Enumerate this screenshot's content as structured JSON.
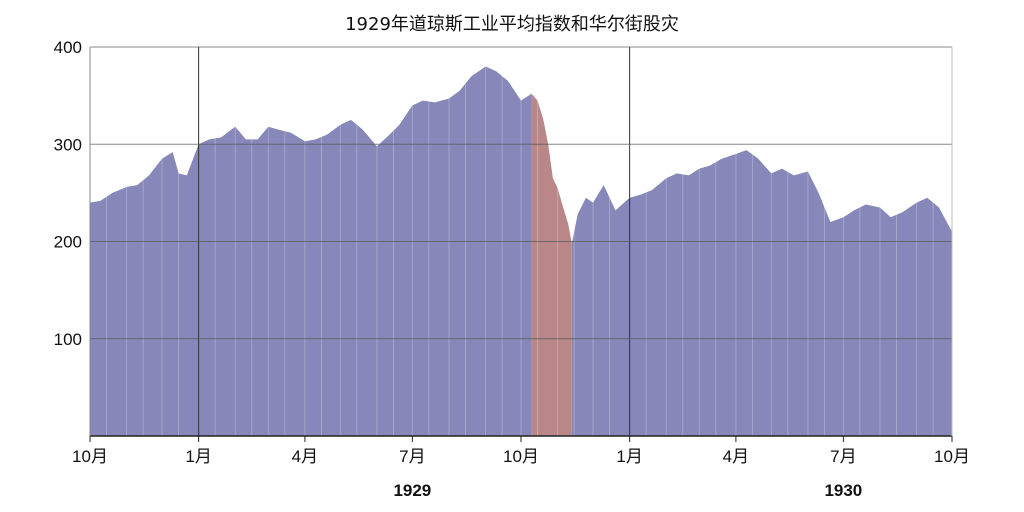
{
  "chart_data": {
    "type": "area",
    "title": "1929年道琼斯工业平均指数和华尔街股灾",
    "xlabel": "",
    "ylabel": "",
    "ylim": [
      0,
      400
    ],
    "y_ticks": [
      100,
      200,
      300,
      400
    ],
    "x_range": [
      "1928-10",
      "1930-10"
    ],
    "x_ticks": [
      {
        "label": "10月",
        "date": "1928-10"
      },
      {
        "label": "1月",
        "date": "1929-01"
      },
      {
        "label": "4月",
        "date": "1929-04"
      },
      {
        "label": "7月",
        "date": "1929-07"
      },
      {
        "label": "10月",
        "date": "1929-10"
      },
      {
        "label": "1月",
        "date": "1930-01"
      },
      {
        "label": "4月",
        "date": "1930-04"
      },
      {
        "label": "7月",
        "date": "1930-07"
      },
      {
        "label": "10月",
        "date": "1930-10"
      }
    ],
    "year_labels": [
      {
        "label": "1929",
        "date": "1929-07"
      },
      {
        "label": "1930",
        "date": "1930-07"
      }
    ],
    "grid": true,
    "colors": {
      "normal": "#8787b9",
      "crash": "#b98787",
      "grid": "#888888",
      "year_line": "#333333"
    },
    "series": [
      {
        "color": "#8787b9",
        "points": [
          [
            "1928-10-01",
            240
          ],
          [
            "1928-10-10",
            242
          ],
          [
            "1928-10-20",
            250
          ],
          [
            "1928-11-01",
            256
          ],
          [
            "1928-11-10",
            258
          ],
          [
            "1928-11-20",
            268
          ],
          [
            "1928-12-01",
            285
          ],
          [
            "1928-12-10",
            292
          ],
          [
            "1928-12-15",
            270
          ],
          [
            "1928-12-22",
            268
          ],
          [
            "1929-01-01",
            300
          ],
          [
            "1929-01-10",
            305
          ],
          [
            "1929-01-20",
            307
          ],
          [
            "1929-02-01",
            318
          ],
          [
            "1929-02-10",
            305
          ],
          [
            "1929-02-20",
            305
          ],
          [
            "1929-03-01",
            318
          ],
          [
            "1929-03-10",
            315
          ],
          [
            "1929-03-20",
            312
          ],
          [
            "1929-04-01",
            303
          ],
          [
            "1929-04-10",
            305
          ],
          [
            "1929-04-20",
            310
          ],
          [
            "1929-05-01",
            320
          ],
          [
            "1929-05-10",
            325
          ],
          [
            "1929-05-20",
            315
          ],
          [
            "1929-06-01",
            298
          ],
          [
            "1929-06-10",
            308
          ],
          [
            "1929-06-20",
            320
          ],
          [
            "1929-07-01",
            340
          ],
          [
            "1929-07-10",
            345
          ],
          [
            "1929-07-20",
            343
          ],
          [
            "1929-08-01",
            347
          ],
          [
            "1929-08-10",
            355
          ],
          [
            "1929-08-20",
            370
          ],
          [
            "1929-09-01",
            380
          ],
          [
            "1929-09-10",
            375
          ],
          [
            "1929-09-20",
            365
          ],
          [
            "1929-10-01",
            345
          ],
          [
            "1929-10-10",
            352
          ]
        ]
      },
      {
        "color": "#b98787",
        "points": [
          [
            "1929-10-10",
            352
          ],
          [
            "1929-10-15",
            345
          ],
          [
            "1929-10-20",
            325
          ],
          [
            "1929-10-24",
            300
          ],
          [
            "1929-10-28",
            265
          ],
          [
            "1929-11-01",
            255
          ],
          [
            "1929-11-05",
            238
          ],
          [
            "1929-11-10",
            218
          ],
          [
            "1929-11-13",
            198
          ]
        ]
      },
      {
        "color": "#8787b9",
        "points": [
          [
            "1929-11-13",
            198
          ],
          [
            "1929-11-18",
            228
          ],
          [
            "1929-11-25",
            245
          ],
          [
            "1929-12-01",
            240
          ],
          [
            "1929-12-10",
            258
          ],
          [
            "1929-12-20",
            232
          ],
          [
            "1930-01-01",
            245
          ],
          [
            "1930-01-10",
            248
          ],
          [
            "1930-01-20",
            253
          ],
          [
            "1930-02-01",
            265
          ],
          [
            "1930-02-10",
            270
          ],
          [
            "1930-02-20",
            268
          ],
          [
            "1930-03-01",
            275
          ],
          [
            "1930-03-10",
            278
          ],
          [
            "1930-03-20",
            285
          ],
          [
            "1930-04-01",
            290
          ],
          [
            "1930-04-10",
            294
          ],
          [
            "1930-04-20",
            285
          ],
          [
            "1930-05-01",
            270
          ],
          [
            "1930-05-10",
            275
          ],
          [
            "1930-05-20",
            268
          ],
          [
            "1930-06-01",
            272
          ],
          [
            "1930-06-10",
            250
          ],
          [
            "1930-06-20",
            220
          ],
          [
            "1930-07-01",
            225
          ],
          [
            "1930-07-10",
            232
          ],
          [
            "1930-07-20",
            238
          ],
          [
            "1930-08-01",
            235
          ],
          [
            "1930-08-10",
            225
          ],
          [
            "1930-08-20",
            230
          ],
          [
            "1930-09-01",
            240
          ],
          [
            "1930-09-10",
            245
          ],
          [
            "1930-09-20",
            235
          ],
          [
            "1930-10-01",
            210
          ]
        ]
      }
    ]
  }
}
